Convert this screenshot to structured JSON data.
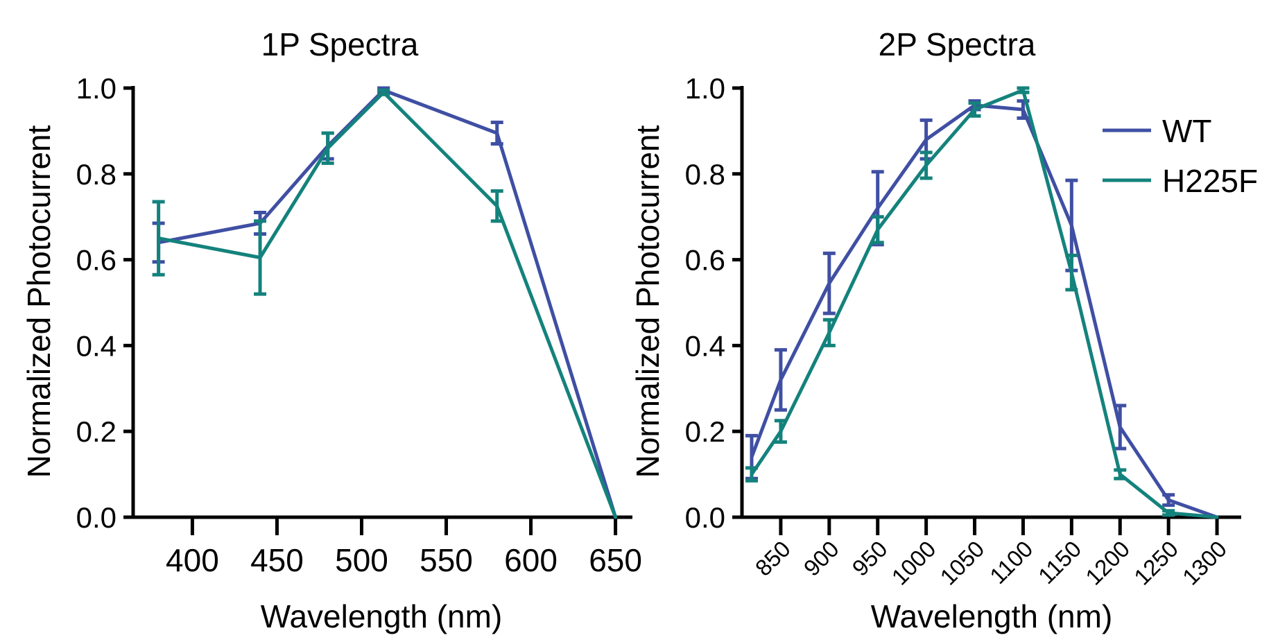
{
  "chart_data": [
    {
      "type": "line",
      "title": "1P Spectra",
      "xlabel": "Wavelength (nm)",
      "ylabel": "Normalized Photocurrent",
      "xlim": [
        365,
        660
      ],
      "ylim": [
        0,
        1.0
      ],
      "xticks": [
        400,
        450,
        500,
        550,
        600,
        650
      ],
      "xtick_labels": [
        "400",
        "450",
        "500",
        "550",
        "600",
        "650"
      ],
      "yticks": [
        0,
        0.2,
        0.4,
        0.6,
        0.8,
        1.0
      ],
      "ytick_labels": [
        "0.0",
        "0.2",
        "0.4",
        "0.6",
        "0.8",
        "1.0"
      ],
      "x": [
        380,
        440,
        480,
        513,
        580,
        650
      ],
      "series": [
        {
          "name": "WT",
          "color": "#3f4fa3",
          "values": [
            0.64,
            0.685,
            0.865,
            0.995,
            0.895,
            0.0
          ],
          "errors": [
            0.045,
            0.025,
            0.03,
            0.005,
            0.025,
            0.0
          ]
        },
        {
          "name": "H225F",
          "color": "#14827c",
          "values": [
            0.65,
            0.605,
            0.86,
            0.99,
            0.725,
            0.0
          ],
          "errors": [
            0.085,
            0.085,
            0.035,
            0.005,
            0.035,
            0.0
          ]
        }
      ]
    },
    {
      "type": "line",
      "title": "2P Spectra",
      "xlabel": "Wavelength (nm)",
      "ylabel": "Normalized Photocurrent",
      "xlim": [
        810,
        1325
      ],
      "ylim": [
        0,
        1.0
      ],
      "xticks": [
        850,
        900,
        950,
        1000,
        1050,
        1100,
        1150,
        1200,
        1250,
        1300
      ],
      "xtick_labels": [
        "850",
        "900",
        "950",
        "1000",
        "1050",
        "1100",
        "1150",
        "1200",
        "1250",
        "1300"
      ],
      "yticks": [
        0,
        0.2,
        0.4,
        0.6,
        0.8,
        1.0
      ],
      "ytick_labels": [
        "0.0",
        "0.2",
        "0.4",
        "0.6",
        "0.8",
        "1.0"
      ],
      "x": [
        820,
        850,
        900,
        950,
        1000,
        1050,
        1100,
        1150,
        1200,
        1250,
        1300
      ],
      "series": [
        {
          "name": "WT",
          "color": "#3f4fa3",
          "values": [
            0.14,
            0.32,
            0.545,
            0.72,
            0.88,
            0.96,
            0.95,
            0.68,
            0.21,
            0.04,
            0.0
          ],
          "errors": [
            0.05,
            0.07,
            0.07,
            0.085,
            0.045,
            0.01,
            0.02,
            0.105,
            0.05,
            0.012,
            0.0
          ]
        },
        {
          "name": "H225F",
          "color": "#14827c",
          "values": [
            0.1,
            0.2,
            0.43,
            0.67,
            0.82,
            0.95,
            0.995,
            0.57,
            0.1,
            0.01,
            0.0
          ],
          "errors": [
            0.015,
            0.025,
            0.03,
            0.03,
            0.03,
            0.015,
            0.005,
            0.04,
            0.01,
            0.005,
            0.0
          ]
        }
      ],
      "legend": {
        "position": "top-right",
        "entries": [
          "WT",
          "H225F"
        ]
      }
    }
  ]
}
